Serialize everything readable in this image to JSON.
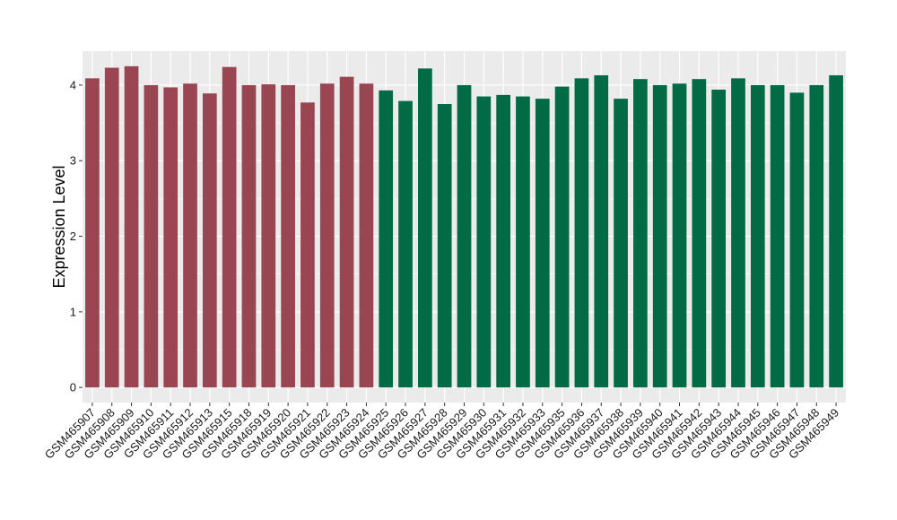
{
  "chart_data": {
    "type": "bar",
    "title": "",
    "xlabel": "",
    "ylabel": "Expression Level",
    "ylim": [
      -0.2,
      4.45
    ],
    "yticks": [
      0,
      1,
      2,
      3,
      4
    ],
    "grid": true,
    "legend": "none",
    "colors": {
      "panel_bg": "#ebebeb",
      "grid": "#ffffff",
      "group_a": "#9a4552",
      "group_b": "#006b45"
    },
    "categories": [
      "GSM465907",
      "GSM465908",
      "GSM465909",
      "GSM465910",
      "GSM465911",
      "GSM465912",
      "GSM465913",
      "GSM465915",
      "GSM465918",
      "GSM465919",
      "GSM465920",
      "GSM465921",
      "GSM465922",
      "GSM465923",
      "GSM465924",
      "GSM465925",
      "GSM465926",
      "GSM465927",
      "GSM465928",
      "GSM465929",
      "GSM465930",
      "GSM465931",
      "GSM465932",
      "GSM465933",
      "GSM465935",
      "GSM465936",
      "GSM465937",
      "GSM465938",
      "GSM465939",
      "GSM465940",
      "GSM465941",
      "GSM465942",
      "GSM465943",
      "GSM465944",
      "GSM465945",
      "GSM465946",
      "GSM465947",
      "GSM465948",
      "GSM465949"
    ],
    "values": [
      4.09,
      4.23,
      4.25,
      4.0,
      3.97,
      4.02,
      3.89,
      4.24,
      4.0,
      4.01,
      4.0,
      3.77,
      4.02,
      4.11,
      4.02,
      3.93,
      3.79,
      4.22,
      3.75,
      4.0,
      3.85,
      3.87,
      3.85,
      3.82,
      3.98,
      4.09,
      4.13,
      3.82,
      4.08,
      4.0,
      4.02,
      4.08,
      3.94,
      4.09,
      4.0,
      4.0,
      3.9,
      4.0,
      4.13
    ],
    "groups": [
      "a",
      "a",
      "a",
      "a",
      "a",
      "a",
      "a",
      "a",
      "a",
      "a",
      "a",
      "a",
      "a",
      "a",
      "a",
      "b",
      "b",
      "b",
      "b",
      "b",
      "b",
      "b",
      "b",
      "b",
      "b",
      "b",
      "b",
      "b",
      "b",
      "b",
      "b",
      "b",
      "b",
      "b",
      "b",
      "b",
      "b",
      "b",
      "b"
    ]
  }
}
